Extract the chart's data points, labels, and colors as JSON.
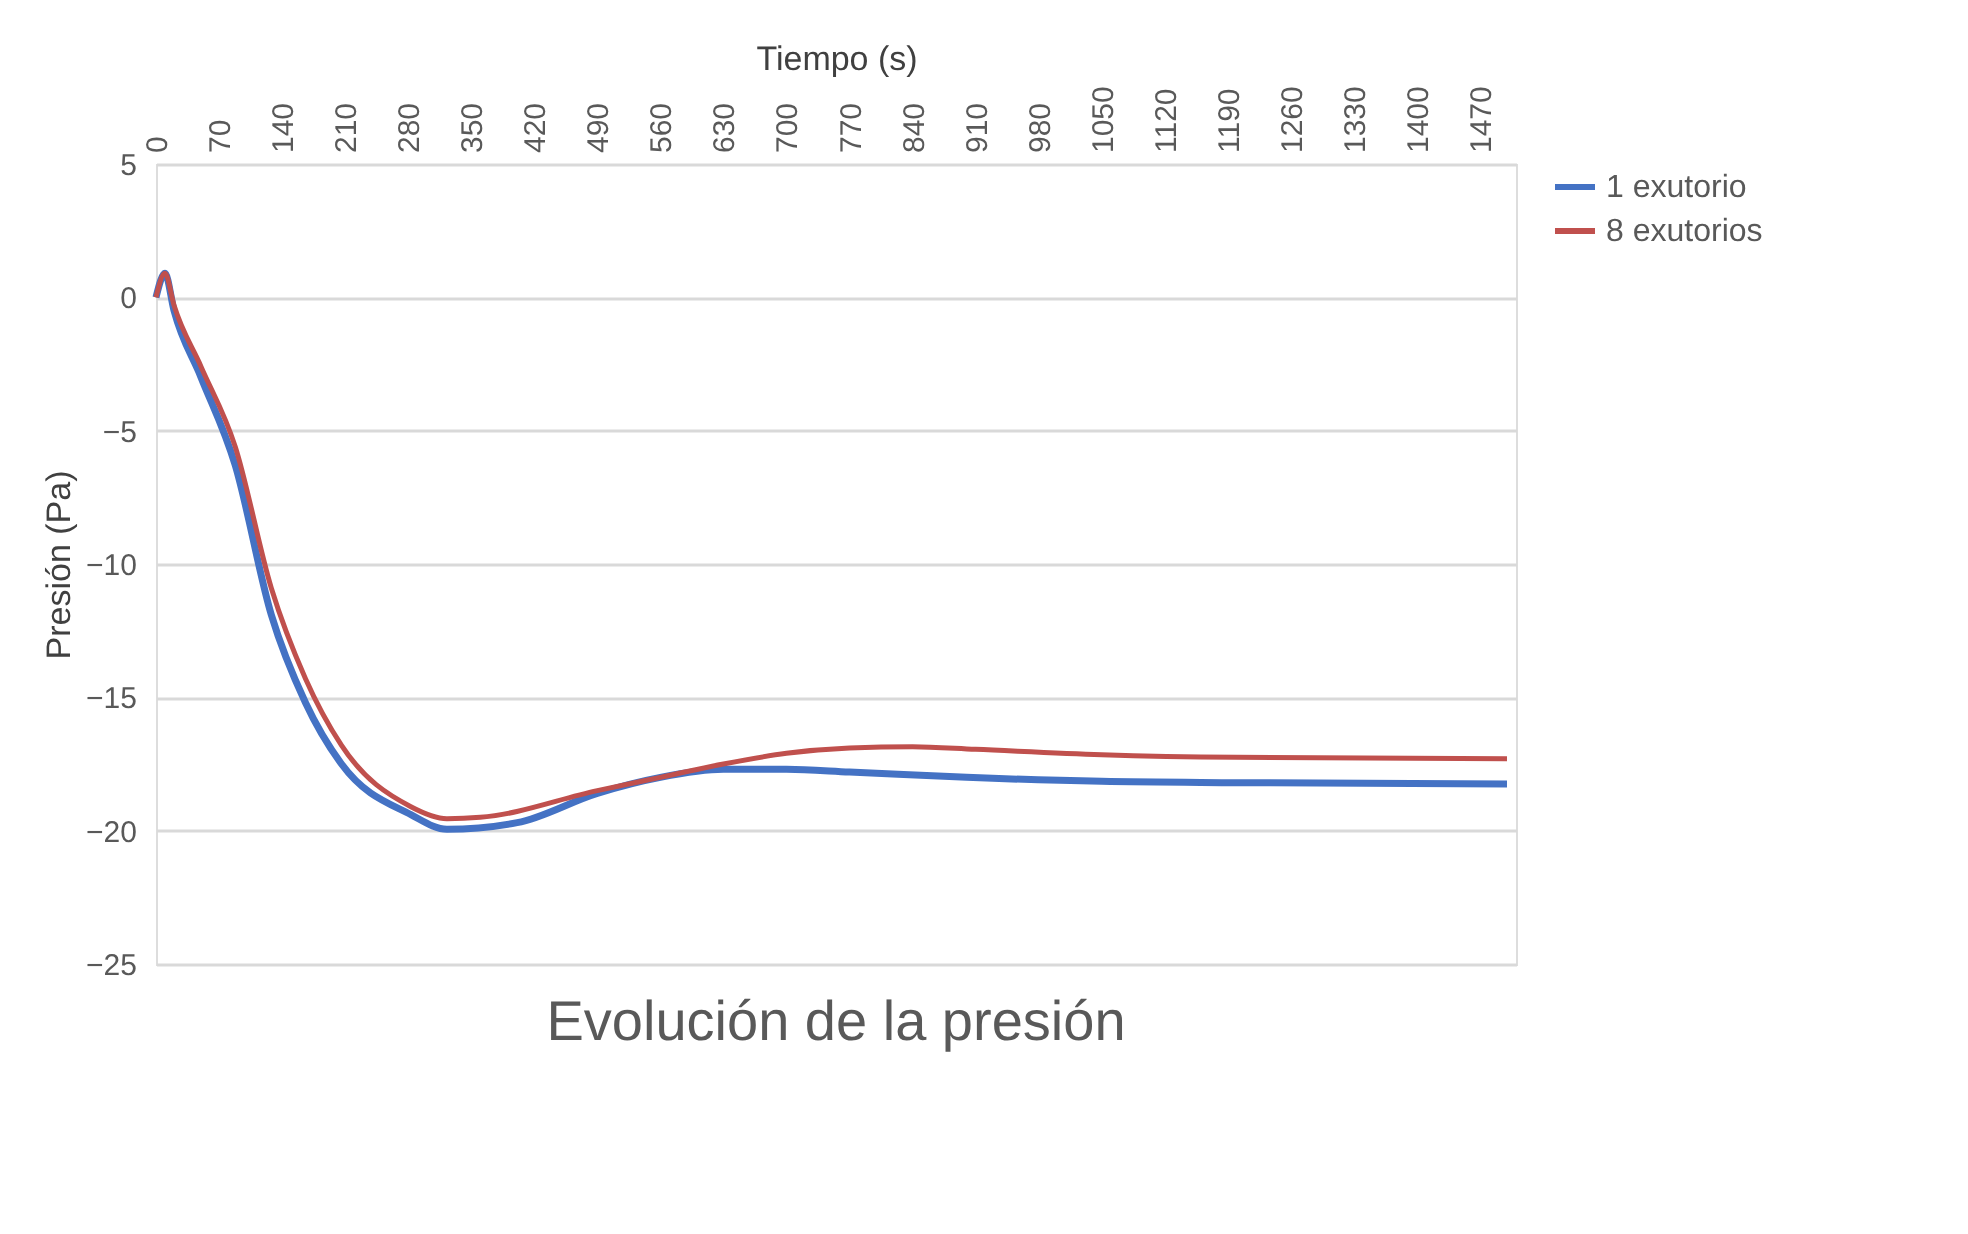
{
  "chart_data": {
    "type": "line",
    "title": "Evolución de la presión",
    "xlabel": "Tiempo (s)",
    "ylabel": "Presión (Pa)",
    "xlim": [
      0,
      1510
    ],
    "xticks": [
      0,
      70,
      140,
      210,
      280,
      350,
      420,
      490,
      560,
      630,
      700,
      770,
      840,
      910,
      980,
      1050,
      1120,
      1190,
      1260,
      1330,
      1400,
      1470
    ],
    "ylim": [
      -25,
      5
    ],
    "yticks": [
      -25,
      -20,
      -15,
      -10,
      -5,
      0,
      5
    ],
    "grid": "y",
    "legend": "right",
    "line_style": "solid",
    "marker": "none",
    "series": [
      {
        "name": "1 exutorio",
        "color": "#4472c4",
        "x": [
          0,
          10,
          20,
          50,
          88,
          128,
          166,
          206,
          283,
          323,
          401,
          490,
          560,
          630,
          700,
          770,
          900,
          1050,
          1200,
          1500
        ],
        "values": [
          0,
          0.9,
          -0.5,
          -3,
          -6.3,
          -11.9,
          -15.2,
          -17.5,
          -19.4,
          -19.95,
          -19.7,
          -18.6,
          -18.0,
          -17.7,
          -17.7,
          -17.8,
          -18.0,
          -18.15,
          -18.2,
          -18.25
        ]
      },
      {
        "name": "8 exutorios",
        "color": "#c0504d",
        "x": [
          0,
          10,
          20,
          50,
          88,
          128,
          166,
          206,
          283,
          323,
          360,
          490,
          560,
          630,
          700,
          770,
          840,
          910,
          1050,
          1200,
          1500
        ],
        "values": [
          0,
          0.9,
          -0.3,
          -2.6,
          -5.6,
          -10.9,
          -14.3,
          -16.8,
          -19.1,
          -19.55,
          -19.5,
          -18.5,
          -18.0,
          -17.5,
          -17.1,
          -16.9,
          -16.85,
          -16.95,
          -17.15,
          -17.25,
          -17.3
        ]
      }
    ]
  }
}
